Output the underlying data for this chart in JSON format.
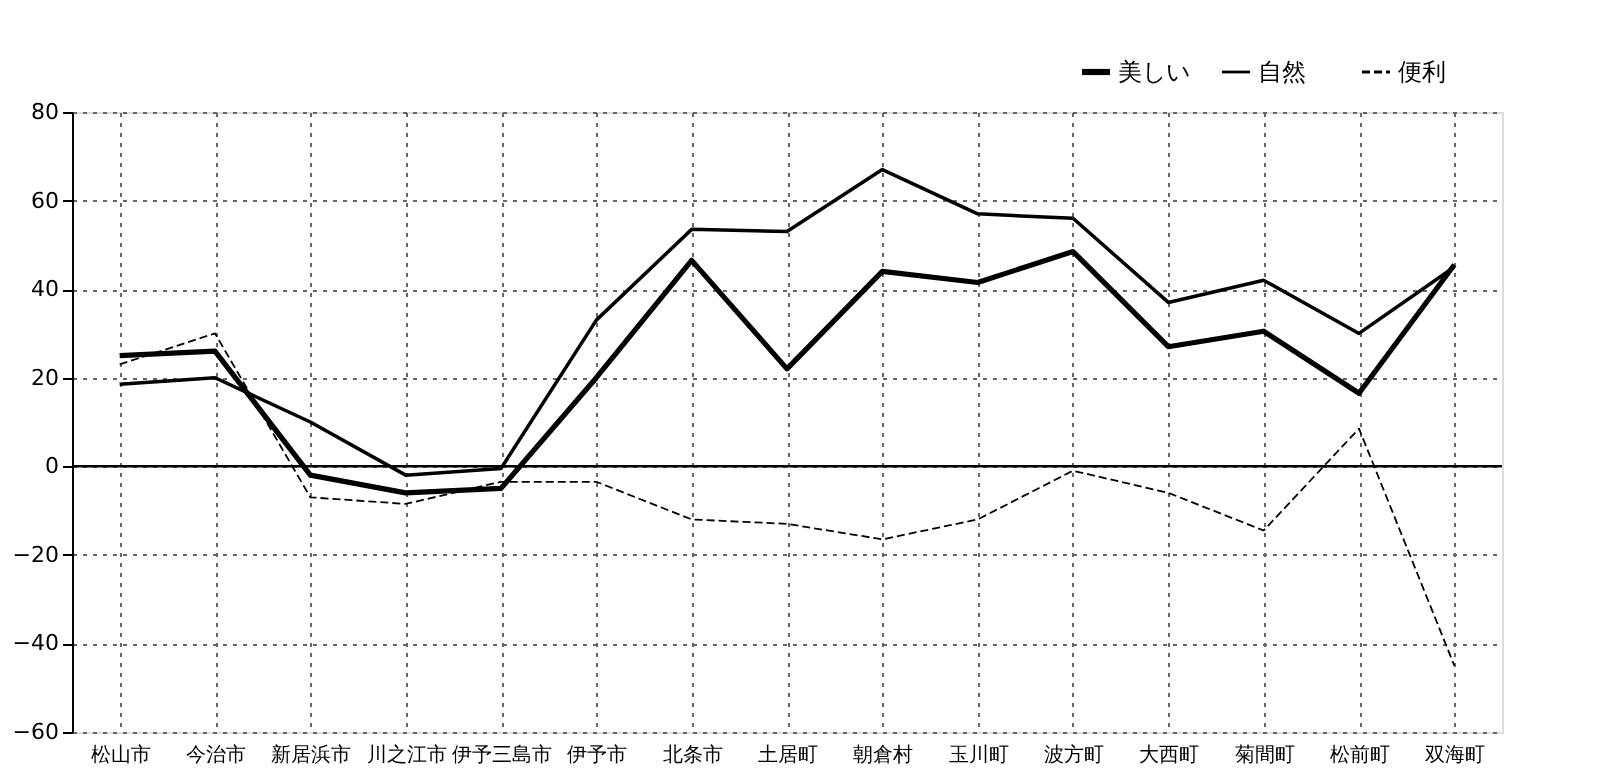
{
  "chart_data": {
    "type": "line",
    "categories": [
      "松山市",
      "今治市",
      "新居浜市",
      "川之江市",
      "伊予三島市",
      "伊予市",
      "北条市",
      "土居町",
      "朝倉村",
      "玉川町",
      "波方町",
      "大西町",
      "菊間町",
      "松前町",
      "双海町"
    ],
    "series": [
      {
        "name": "美しい",
        "color": "#000000",
        "line_style": "solid",
        "values": [
          25,
          26,
          -2,
          -6,
          -5,
          20,
          46.5,
          22,
          44,
          41.5,
          48.5,
          27,
          30.5,
          16.5,
          45.5
        ]
      },
      {
        "name": "自然",
        "color": "#000000",
        "line_style": "solid",
        "values": [
          18.5,
          20,
          10,
          -2,
          -0.5,
          33,
          53.5,
          53,
          67,
          57,
          56,
          37,
          42,
          30,
          45
        ]
      },
      {
        "name": "便利",
        "color": "#000000",
        "line_style": "dashed",
        "values": [
          23,
          30,
          -7,
          -8.5,
          -3.5,
          -3.5,
          -12,
          -13,
          -16.5,
          -12,
          -1,
          -6,
          -14.5,
          8.5,
          -45
        ]
      }
    ],
    "ylim": [
      -60,
      80
    ],
    "yticks": [
      -60,
      -40,
      -20,
      0,
      20,
      40,
      60,
      80
    ],
    "grid": true,
    "legend": "top right",
    "marker": "none",
    "ref_lines": [
      {
        "axis": "y",
        "value": 0,
        "color": "#000000",
        "line_style": "solid"
      }
    ]
  }
}
